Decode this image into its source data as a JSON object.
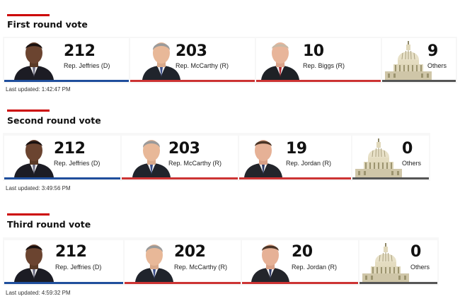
{
  "colors": {
    "democrat": "#1f4e9c",
    "republican": "#cc3333",
    "other": "#555555",
    "accent": "#cc0000"
  },
  "rounds": [
    {
      "title": "First round vote",
      "last_updated": "Last updated: 1:42:47 PM",
      "candidates": [
        {
          "count": "212",
          "name": "Rep. Jeffries (D)",
          "party": "D",
          "icon": "person-photo"
        },
        {
          "count": "203",
          "name": "Rep. McCarthy (R)",
          "party": "R",
          "icon": "person-photo"
        },
        {
          "count": "10",
          "name": "Rep. Biggs (R)",
          "party": "R",
          "icon": "person-photo"
        },
        {
          "count": "9",
          "name": "Others",
          "party": "O",
          "icon": "capitol-building-icon"
        }
      ]
    },
    {
      "title": "Second round vote",
      "last_updated": "Last updated: 3:49:56 PM",
      "candidates": [
        {
          "count": "212",
          "name": "Rep. Jeffries (D)",
          "party": "D",
          "icon": "person-photo"
        },
        {
          "count": "203",
          "name": "Rep. McCarthy (R)",
          "party": "R",
          "icon": "person-photo"
        },
        {
          "count": "19",
          "name": "Rep. Jordan (R)",
          "party": "R",
          "icon": "person-photo"
        },
        {
          "count": "0",
          "name": "Others",
          "party": "O",
          "icon": "capitol-building-icon"
        }
      ]
    },
    {
      "title": "Third round vote",
      "last_updated": "Last updated: 4:59:32 PM",
      "candidates": [
        {
          "count": "212",
          "name": "Rep. Jeffries (D)",
          "party": "D",
          "icon": "person-photo"
        },
        {
          "count": "202",
          "name": "Rep. McCarthy (R)",
          "party": "R",
          "icon": "person-photo"
        },
        {
          "count": "20",
          "name": "Rep. Jordan (R)",
          "party": "R",
          "icon": "person-photo"
        },
        {
          "count": "0",
          "name": "Others",
          "party": "O",
          "icon": "capitol-building-icon"
        }
      ]
    }
  ]
}
